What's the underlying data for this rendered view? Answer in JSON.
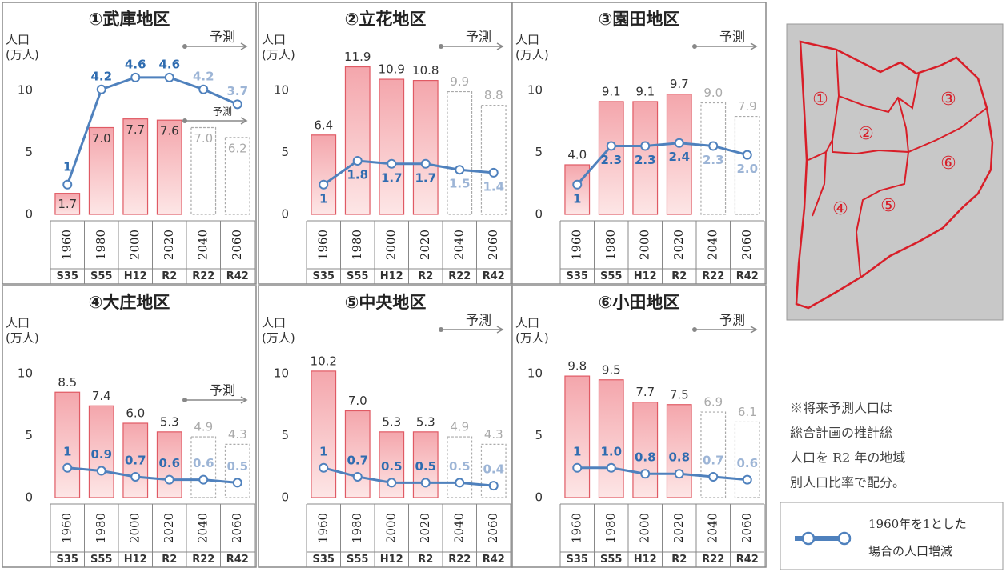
{
  "chart_data": [
    {
      "type": "bar_line",
      "title": "①武庫地区",
      "ylabel": [
        "人口",
        "(万人)"
      ],
      "annotations": [
        "予測",
        "予測"
      ],
      "categories": [
        "1960",
        "1980",
        "2000",
        "2020",
        "2040",
        "2060"
      ],
      "era_labels": [
        "S35",
        "S55",
        "H12",
        "R2",
        "R22",
        "R42"
      ],
      "ylim": [
        0,
        12
      ],
      "yticks": [
        0,
        5,
        10
      ],
      "y2lim": [
        0,
        5
      ],
      "series": [
        {
          "color": "#e05a64",
          "values": [
            1.7,
            7.0,
            7.7,
            7.6,
            7.0,
            6.2
          ],
          "value_labels": [
            "1.7",
            "7.0",
            "7.7",
            "7.6",
            "7.0",
            "6.2"
          ]
        },
        {
          "color": "#4f81bd",
          "axis": "y2",
          "values": [
            1,
            4.2,
            4.6,
            4.6,
            4.2,
            3.7
          ],
          "value_labels": [
            "1",
            "4.2",
            "4.6",
            "4.6",
            "4.2",
            "3.7"
          ]
        }
      ]
    },
    {
      "type": "bar_line",
      "title": "②立花地区",
      "ylabel": [
        "人口",
        "(万人)"
      ],
      "annotations": [
        "予測"
      ],
      "categories": [
        "1960",
        "1980",
        "2000",
        "2020",
        "2040",
        "2060"
      ],
      "era_labels": [
        "S35",
        "S55",
        "H12",
        "R2",
        "R22",
        "R42"
      ],
      "ylim": [
        0,
        12
      ],
      "yticks": [
        0,
        5,
        10
      ],
      "y2lim": [
        0,
        5
      ],
      "series": [
        {
          "color": "#e05a64",
          "values": [
            6.4,
            11.9,
            10.9,
            10.8,
            9.9,
            8.8
          ],
          "value_labels": [
            "6.4",
            "11.9",
            "10.9",
            "10.8",
            "9.9",
            "8.8"
          ]
        },
        {
          "color": "#4f81bd",
          "axis": "y2",
          "values": [
            1,
            1.8,
            1.7,
            1.7,
            1.5,
            1.4
          ],
          "value_labels": [
            "1",
            "1.8",
            "1.7",
            "1.7",
            "1.5",
            "1.4"
          ]
        }
      ]
    },
    {
      "type": "bar_line",
      "title": "③園田地区",
      "ylabel": [
        "人口",
        "(万人)"
      ],
      "annotations": [
        "予測"
      ],
      "categories": [
        "1960",
        "1980",
        "2000",
        "2020",
        "2040",
        "2060"
      ],
      "era_labels": [
        "S35",
        "S55",
        "H12",
        "R2",
        "R22",
        "R42"
      ],
      "ylim": [
        0,
        12
      ],
      "yticks": [
        0,
        5,
        10
      ],
      "y2lim": [
        0,
        5
      ],
      "series": [
        {
          "color": "#e05a64",
          "values": [
            4.0,
            9.1,
            9.1,
            9.7,
            9.0,
            7.9
          ],
          "value_labels": [
            "4.0",
            "9.1",
            "9.1",
            "9.7",
            "9.0",
            "7.9"
          ]
        },
        {
          "color": "#4f81bd",
          "axis": "y2",
          "values": [
            1,
            2.3,
            2.3,
            2.4,
            2.3,
            2.0
          ],
          "value_labels": [
            "1",
            "2.3",
            "2.3",
            "2.4",
            "2.3",
            "2.0"
          ]
        }
      ]
    },
    {
      "type": "bar_line",
      "title": "④大庄地区",
      "ylabel": [
        "人口",
        "(万人)"
      ],
      "annotations": [
        "予測"
      ],
      "categories": [
        "1960",
        "1980",
        "2000",
        "2020",
        "2040",
        "2060"
      ],
      "era_labels": [
        "S35",
        "S55",
        "H12",
        "R2",
        "R22",
        "R42"
      ],
      "ylim": [
        0,
        12
      ],
      "yticks": [
        0,
        5,
        10
      ],
      "y2lim": [
        0,
        5
      ],
      "series": [
        {
          "color": "#e05a64",
          "values": [
            8.5,
            7.4,
            6.0,
            5.3,
            4.9,
            4.3
          ],
          "value_labels": [
            "8.5",
            "7.4",
            "6.0",
            "5.3",
            "4.9",
            "4.3"
          ]
        },
        {
          "color": "#4f81bd",
          "axis": "y2",
          "values": [
            1,
            0.9,
            0.7,
            0.6,
            0.6,
            0.5
          ],
          "value_labels": [
            "1",
            "0.9",
            "0.7",
            "0.6",
            "0.6",
            "0.5"
          ]
        }
      ]
    },
    {
      "type": "bar_line",
      "title": "⑤中央地区",
      "ylabel": [
        "人口",
        "(万人)"
      ],
      "annotations": [
        "予測"
      ],
      "categories": [
        "1960",
        "1980",
        "2000",
        "2020",
        "2040",
        "2060"
      ],
      "era_labels": [
        "S35",
        "S55",
        "H12",
        "R2",
        "R22",
        "R42"
      ],
      "ylim": [
        0,
        12
      ],
      "yticks": [
        0,
        5,
        10
      ],
      "y2lim": [
        0,
        5
      ],
      "series": [
        {
          "color": "#e05a64",
          "values": [
            10.2,
            7.0,
            5.3,
            5.3,
            4.9,
            4.3
          ],
          "value_labels": [
            "10.2",
            "7.0",
            "5.3",
            "5.3",
            "4.9",
            "4.3"
          ]
        },
        {
          "color": "#4f81bd",
          "axis": "y2",
          "values": [
            1,
            0.7,
            0.5,
            0.5,
            0.5,
            0.4
          ],
          "value_labels": [
            "1",
            "0.7",
            "0.5",
            "0.5",
            "0.5",
            "0.4"
          ]
        }
      ]
    },
    {
      "type": "bar_line",
      "title": "⑥小田地区",
      "ylabel": [
        "人口",
        "(万人)"
      ],
      "annotations": [
        "予測"
      ],
      "categories": [
        "1960",
        "1980",
        "2000",
        "2020",
        "2040",
        "2060"
      ],
      "era_labels": [
        "S35",
        "S55",
        "H12",
        "R2",
        "R22",
        "R42"
      ],
      "ylim": [
        0,
        12
      ],
      "yticks": [
        0,
        5,
        10
      ],
      "y2lim": [
        0,
        5
      ],
      "series": [
        {
          "color": "#e05a64",
          "values": [
            9.8,
            9.5,
            7.7,
            7.5,
            6.9,
            6.1
          ],
          "value_labels": [
            "9.8",
            "9.5",
            "7.7",
            "7.5",
            "6.9",
            "6.1"
          ]
        },
        {
          "color": "#4f81bd",
          "axis": "y2",
          "values": [
            1,
            1.0,
            0.8,
            0.8,
            0.7,
            0.6
          ],
          "value_labels": [
            "1",
            "1.0",
            "0.8",
            "0.8",
            "0.7",
            "0.6"
          ]
        }
      ]
    }
  ],
  "map": {
    "labels": [
      "①",
      "②",
      "③",
      "④",
      "⑤",
      "⑥"
    ]
  },
  "note": [
    "※将来予測人口は",
    "総合計画の推計総",
    "人口を R2 年の地域",
    "別人口比率で配分。"
  ],
  "legend": [
    "1960年を1とした",
    "場合の人口増減"
  ]
}
